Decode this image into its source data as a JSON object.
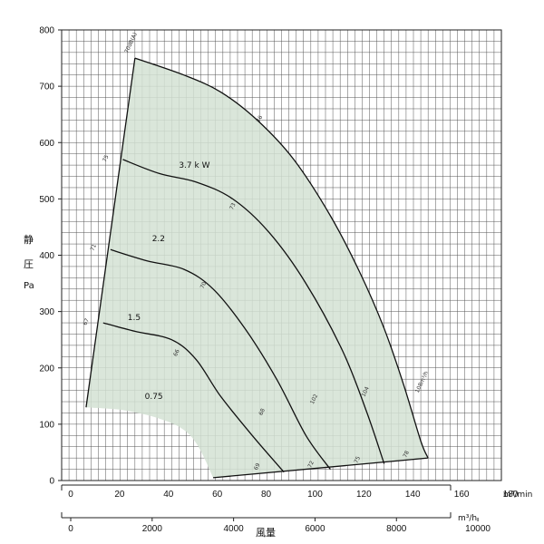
{
  "chart_data": {
    "type": "line",
    "ylabel_chars": [
      "静",
      "圧",
      "Pa"
    ],
    "x_unit_top": "m³/min",
    "x_unit_bottom": "m³/h",
    "x_caption": "風量",
    "ylim": [
      0,
      800
    ],
    "xlim": [
      0,
      180
    ],
    "y_ticks": [
      0,
      100,
      200,
      300,
      400,
      500,
      600,
      700,
      800
    ],
    "x_ticks_top": [
      0,
      20,
      40,
      60,
      80,
      100,
      120,
      140,
      160,
      180
    ],
    "x_ticks_bottom": [
      0,
      2000,
      4000,
      6000,
      8000,
      10000
    ],
    "grid": true,
    "fill_color": "#d4e2d4",
    "line_color": "#111111",
    "series": [
      {
        "name": "3.7kW",
        "points": [
          [
            25,
            570
          ],
          [
            40,
            545
          ],
          [
            55,
            530
          ],
          [
            70,
            500
          ],
          [
            85,
            440
          ],
          [
            100,
            350
          ],
          [
            115,
            230
          ],
          [
            125,
            120
          ],
          [
            132,
            30
          ]
        ]
      },
      {
        "name": "2.2",
        "points": [
          [
            20,
            410
          ],
          [
            35,
            390
          ],
          [
            50,
            375
          ],
          [
            62,
            340
          ],
          [
            75,
            270
          ],
          [
            88,
            180
          ],
          [
            100,
            80
          ],
          [
            110,
            20
          ]
        ]
      },
      {
        "name": "1.5",
        "points": [
          [
            17,
            280
          ],
          [
            30,
            265
          ],
          [
            45,
            250
          ],
          [
            55,
            215
          ],
          [
            65,
            150
          ],
          [
            78,
            80
          ],
          [
            91,
            15
          ]
        ]
      }
    ],
    "envelope": {
      "left_edge": [
        [
          10,
          130
        ],
        [
          30,
          750
        ]
      ],
      "top_right": [
        [
          30,
          750
        ],
        [
          50,
          720
        ],
        [
          65,
          690
        ],
        [
          80,
          640
        ],
        [
          95,
          570
        ],
        [
          110,
          470
        ],
        [
          122,
          370
        ],
        [
          132,
          270
        ],
        [
          140,
          170
        ],
        [
          147,
          70
        ],
        [
          150,
          40
        ]
      ],
      "bottom": [
        [
          62,
          5
        ],
        [
          150,
          40
        ]
      ],
      "lower_left_boundary": [
        [
          10,
          130
        ],
        [
          25,
          125
        ],
        [
          40,
          110
        ],
        [
          50,
          90
        ],
        [
          56,
          60
        ],
        [
          62,
          5
        ]
      ]
    },
    "curve_labels": [
      {
        "text": "3.7 k W",
        "x": 48,
        "y": 555
      },
      {
        "text": "2.2",
        "x": 37,
        "y": 425
      },
      {
        "text": "1.5",
        "x": 27,
        "y": 285
      },
      {
        "text": "0.75",
        "x": 34,
        "y": 145
      }
    ],
    "efficiency_labels": [
      {
        "text": "70dB(A)",
        "x": 27,
        "y": 758
      },
      {
        "text": "76",
        "x": 81,
        "y": 635
      },
      {
        "text": "73",
        "x": 70,
        "y": 480
      },
      {
        "text": "70",
        "x": 58,
        "y": 340
      },
      {
        "text": "66",
        "x": 47,
        "y": 220
      },
      {
        "text": "75",
        "x": 18,
        "y": 565
      },
      {
        "text": "71",
        "x": 13,
        "y": 407
      },
      {
        "text": "67",
        "x": 10,
        "y": 275
      },
      {
        "text": "69",
        "x": 80,
        "y": 18
      },
      {
        "text": "72",
        "x": 102,
        "y": 22
      },
      {
        "text": "75",
        "x": 121,
        "y": 30
      },
      {
        "text": "78",
        "x": 141,
        "y": 40
      },
      {
        "text": "68",
        "x": 82,
        "y": 115
      },
      {
        "text": "102",
        "x": 103,
        "y": 135
      },
      {
        "text": "104",
        "x": 124,
        "y": 148
      },
      {
        "text": "108m³/h",
        "x": 146,
        "y": 155
      }
    ]
  }
}
